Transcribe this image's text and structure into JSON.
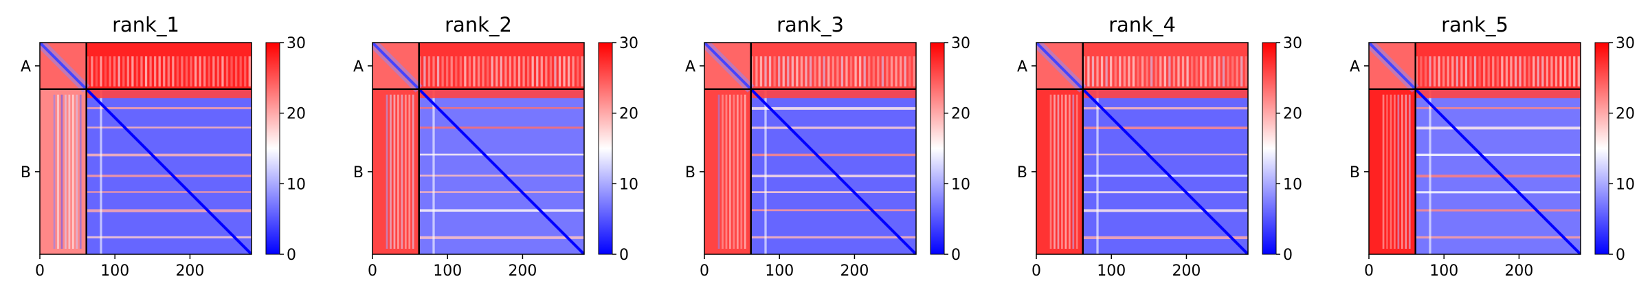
{
  "figure": {
    "colormap": {
      "low": "#0000ff",
      "mid": "#ffffff",
      "high": "#ff0000"
    },
    "separator_color": "#000000",
    "background": "#ffffff"
  },
  "chart_data": [
    {
      "type": "heatmap",
      "title": "rank_1",
      "xlim": [
        0,
        282
      ],
      "ylim": [
        0,
        282
      ],
      "x_ticks": [
        0,
        100,
        200
      ],
      "x_tick_labels": [
        "0",
        "100",
        "200"
      ],
      "chain_labels": [
        "A",
        "B"
      ],
      "chain_centers": [
        31,
        172
      ],
      "chain_boundary": 62,
      "colorbar": {
        "range": [
          0,
          30
        ],
        "ticks": [
          0,
          10,
          20,
          30
        ],
        "tick_labels": [
          "0",
          "10",
          "20",
          "30"
        ]
      },
      "profile": {
        "inter_chain_A_B": 28,
        "inter_chain_B_A": 22,
        "B_intra": 6,
        "A_intra": 24
      }
    },
    {
      "type": "heatmap",
      "title": "rank_2",
      "xlim": [
        0,
        282
      ],
      "ylim": [
        0,
        282
      ],
      "x_ticks": [
        0,
        100,
        200
      ],
      "x_tick_labels": [
        "0",
        "100",
        "200"
      ],
      "chain_labels": [
        "A",
        "B"
      ],
      "chain_centers": [
        31,
        172
      ],
      "chain_boundary": 62,
      "colorbar": {
        "range": [
          0,
          30
        ],
        "ticks": [
          0,
          10,
          20,
          30
        ],
        "tick_labels": [
          "0",
          "10",
          "20",
          "30"
        ]
      },
      "profile": {
        "inter_chain_A_B": 27,
        "inter_chain_B_A": 26,
        "B_intra": 7,
        "A_intra": 24
      }
    },
    {
      "type": "heatmap",
      "title": "rank_3",
      "xlim": [
        0,
        282
      ],
      "ylim": [
        0,
        282
      ],
      "x_ticks": [
        0,
        100,
        200
      ],
      "x_tick_labels": [
        "0",
        "100",
        "200"
      ],
      "chain_labels": [
        "A",
        "B"
      ],
      "chain_centers": [
        31,
        172
      ],
      "chain_boundary": 62,
      "colorbar": {
        "range": [
          0,
          30
        ],
        "ticks": [
          0,
          10,
          20,
          30
        ],
        "tick_labels": [
          "0",
          "10",
          "20",
          "30"
        ]
      },
      "profile": {
        "inter_chain_A_B": 26,
        "inter_chain_B_A": 26,
        "B_intra": 6,
        "A_intra": 24
      }
    },
    {
      "type": "heatmap",
      "title": "rank_4",
      "xlim": [
        0,
        282
      ],
      "ylim": [
        0,
        282
      ],
      "x_ticks": [
        0,
        100,
        200
      ],
      "x_tick_labels": [
        "0",
        "100",
        "200"
      ],
      "chain_labels": [
        "A",
        "B"
      ],
      "chain_centers": [
        31,
        172
      ],
      "chain_boundary": 62,
      "colorbar": {
        "range": [
          0,
          30
        ],
        "ticks": [
          0,
          10,
          20,
          30
        ],
        "tick_labels": [
          "0",
          "10",
          "20",
          "30"
        ]
      },
      "profile": {
        "inter_chain_A_B": 26,
        "inter_chain_B_A": 27,
        "B_intra": 6,
        "A_intra": 24
      }
    },
    {
      "type": "heatmap",
      "title": "rank_5",
      "xlim": [
        0,
        282
      ],
      "ylim": [
        0,
        282
      ],
      "x_ticks": [
        0,
        100,
        200
      ],
      "x_tick_labels": [
        "0",
        "100",
        "200"
      ],
      "chain_labels": [
        "A",
        "B"
      ],
      "chain_centers": [
        31,
        172
      ],
      "chain_boundary": 62,
      "colorbar": {
        "range": [
          0,
          30
        ],
        "ticks": [
          0,
          10,
          20,
          30
        ],
        "tick_labels": [
          "0",
          "10",
          "20",
          "30"
        ]
      },
      "profile": {
        "inter_chain_A_B": 27,
        "inter_chain_B_A": 28,
        "B_intra": 7,
        "A_intra": 24
      }
    }
  ]
}
